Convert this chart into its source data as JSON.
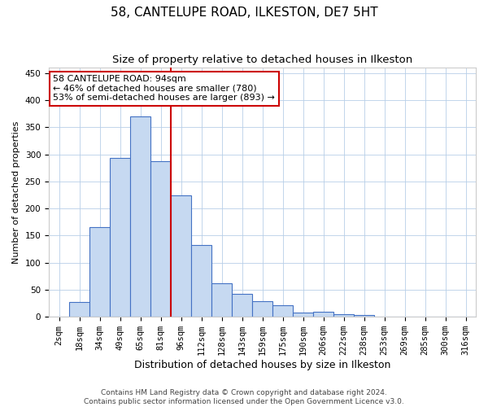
{
  "title": "58, CANTELUPE ROAD, ILKESTON, DE7 5HT",
  "subtitle": "Size of property relative to detached houses in Ilkeston",
  "xlabel": "Distribution of detached houses by size in Ilkeston",
  "ylabel": "Number of detached properties",
  "footer_line1": "Contains HM Land Registry data © Crown copyright and database right 2024.",
  "footer_line2": "Contains public sector information licensed under the Open Government Licence v3.0.",
  "categories": [
    "2sqm",
    "18sqm",
    "34sqm",
    "49sqm",
    "65sqm",
    "81sqm",
    "96sqm",
    "112sqm",
    "128sqm",
    "143sqm",
    "159sqm",
    "175sqm",
    "190sqm",
    "206sqm",
    "222sqm",
    "238sqm",
    "253sqm",
    "269sqm",
    "285sqm",
    "300sqm",
    "316sqm"
  ],
  "values": [
    1,
    28,
    165,
    293,
    370,
    287,
    224,
    133,
    62,
    42,
    29,
    22,
    8,
    10,
    5,
    3,
    1,
    0,
    0,
    0,
    0
  ],
  "bar_color": "#c6d9f1",
  "bar_edge_color": "#4472c4",
  "grid_color": "#b8cfe8",
  "background_color": "#ffffff",
  "vline_color": "#cc0000",
  "annotation_text": "58 CANTELUPE ROAD: 94sqm\n← 46% of detached houses are smaller (780)\n53% of semi-detached houses are larger (893) →",
  "annotation_box_color": "#ffffff",
  "annotation_box_edge_color": "#cc0000",
  "ylim": [
    0,
    460
  ],
  "yticks": [
    0,
    50,
    100,
    150,
    200,
    250,
    300,
    350,
    400,
    450
  ],
  "title_fontsize": 11,
  "subtitle_fontsize": 9.5,
  "ylabel_fontsize": 8,
  "xlabel_fontsize": 9,
  "tick_fontsize": 7.5,
  "annotation_fontsize": 8,
  "footer_fontsize": 6.5
}
